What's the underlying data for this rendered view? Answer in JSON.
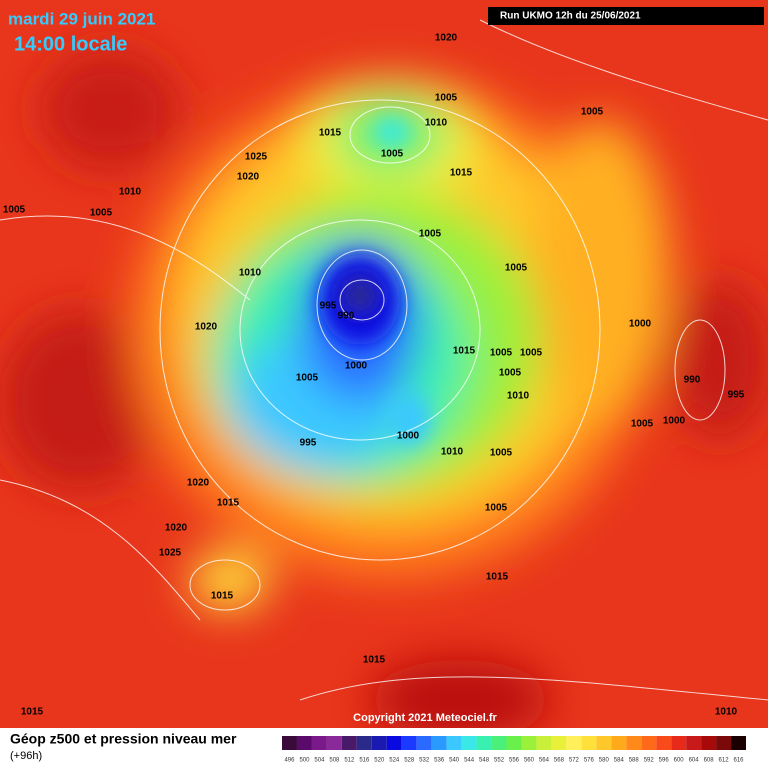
{
  "header": {
    "date": "mardi 29 juin 2021",
    "time": "14:00 locale",
    "run": "Run UKMO 12h du 25/06/2021"
  },
  "map": {
    "isobar_labels": [
      "1020",
      "1005",
      "1010",
      "1005",
      "1015",
      "1005",
      "1025",
      "1020",
      "1015",
      "1010",
      "1005",
      "1005",
      "1005",
      "1005",
      "1010",
      "995",
      "990",
      "1000",
      "1020",
      "1015",
      "1005",
      "1005",
      "1005",
      "1000",
      "1005",
      "990",
      "1010",
      "995",
      "1000",
      "1005",
      "1000",
      "995",
      "1010",
      "1005",
      "1020",
      "1015",
      "1005",
      "1020",
      "1025",
      "1015",
      "1015",
      "1015",
      "1015",
      "1010"
    ],
    "copyright": "Copyright 2021 Meteociel.fr"
  },
  "legend": {
    "title": "Géop z500 et pression niveau mer",
    "subtitle": "(+96h)",
    "scale": [
      "496",
      "500",
      "504",
      "508",
      "512",
      "516",
      "520",
      "524",
      "528",
      "532",
      "536",
      "540",
      "544",
      "548",
      "552",
      "556",
      "560",
      "564",
      "568",
      "572",
      "576",
      "580",
      "584",
      "588",
      "592",
      "596",
      "600",
      "604",
      "608",
      "612",
      "616"
    ],
    "colors": [
      "#3a0a3a",
      "#5a0a6a",
      "#7a1a8a",
      "#8a2a9a",
      "#4a1a6a",
      "#2a2a8a",
      "#1a1ab0",
      "#0a0ae0",
      "#1a3aff",
      "#2a6aff",
      "#2a9aff",
      "#3ac8ff",
      "#3ae8e8",
      "#3af0b0",
      "#4af07a",
      "#6af04a",
      "#9af03a",
      "#c8f03a",
      "#e8f03a",
      "#fff05a",
      "#ffe03a",
      "#ffc82a",
      "#ffaa1a",
      "#ff8a1a",
      "#ff6a1a",
      "#f84a1a",
      "#e82a1a",
      "#c81a1a",
      "#a80a0a",
      "#7a0a0a",
      "#1a0000"
    ]
  }
}
